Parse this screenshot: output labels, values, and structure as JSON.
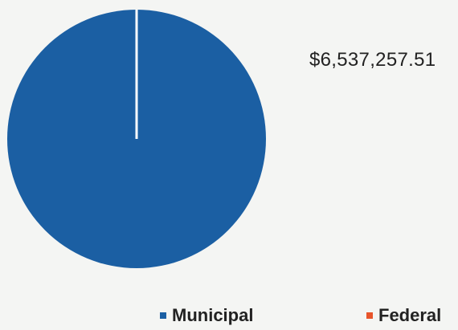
{
  "chart_data": {
    "type": "pie",
    "categories": [
      "Municipal",
      "Federal"
    ],
    "values": [
      6537257.51,
      0
    ],
    "colors": {
      "Municipal": "#1b5fa3",
      "Federal": "#e8552b"
    },
    "data_labels": [
      "$6,537,257.51"
    ],
    "legend_position": "bottom"
  },
  "labels": {
    "amount": "$6,537,257.51",
    "legend": [
      {
        "label": "Municipal",
        "color": "#1b5fa3"
      },
      {
        "label": "Federal",
        "color": "#e8552b"
      }
    ]
  }
}
